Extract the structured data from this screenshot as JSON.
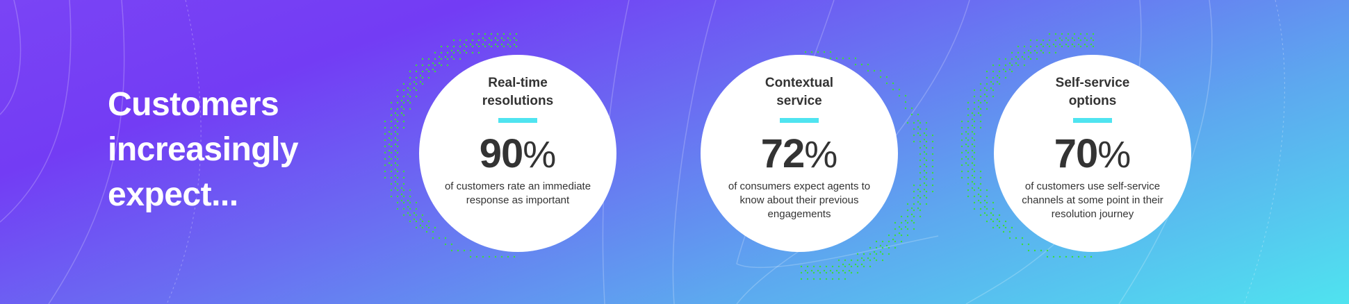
{
  "title_lines": [
    "Customers",
    "increasingly",
    "expect..."
  ],
  "cards": [
    {
      "heading_lines": [
        "Real-time",
        "resolutions"
      ],
      "value": "90",
      "unit": "%",
      "description": "of customers rate an immediate response as important"
    },
    {
      "heading_lines": [
        "Contextual",
        "service"
      ],
      "value": "72",
      "unit": "%",
      "description": "of consumers expect agents to know about their previous engagements"
    },
    {
      "heading_lines": [
        "Self-service",
        "options"
      ],
      "value": "70",
      "unit": "%",
      "description": "of customers use self-service channels at some point in their resolution journey"
    }
  ],
  "colors": {
    "accent": "#4fe4f0",
    "dots": "#3ddc3a",
    "text": "#333333"
  }
}
